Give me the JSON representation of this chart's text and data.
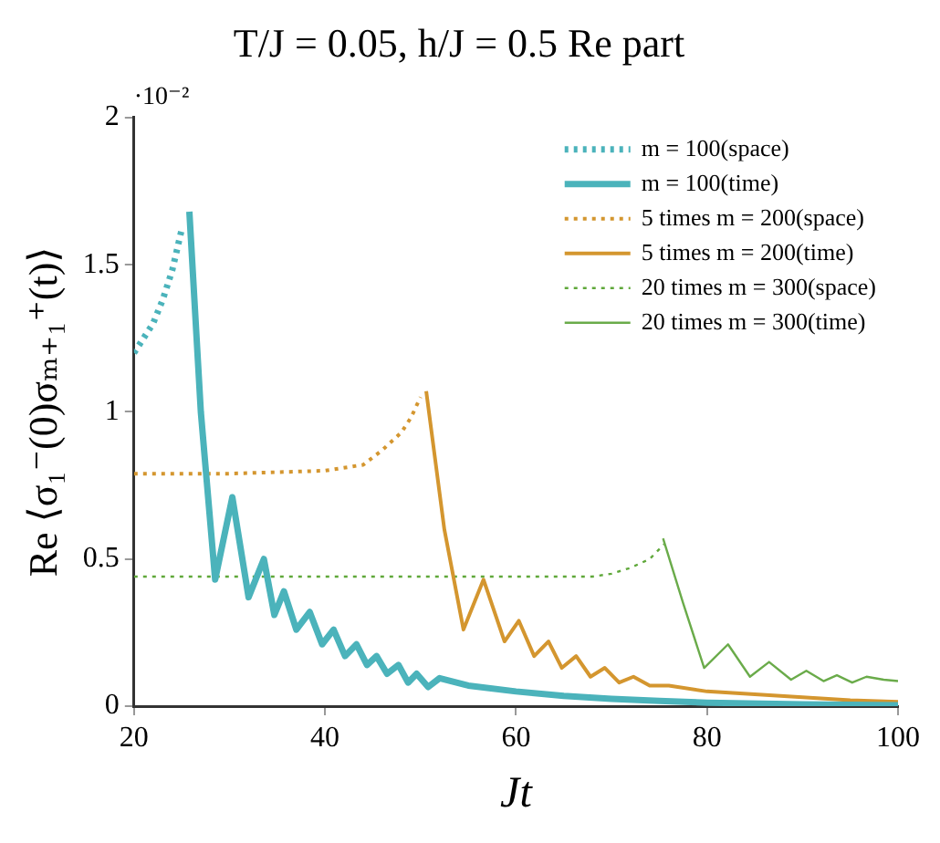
{
  "chart_data": {
    "type": "line",
    "title": "T/J = 0.05, h/J = 0.5 Re part",
    "xlabel": "Jt",
    "ylabel": "Re ⟨σ₁⁻(0)σₘ₊₁⁺(t)⟩",
    "annotations": [
      "·10⁻²"
    ],
    "xlim": [
      20,
      100
    ],
    "xticks": [
      20,
      40,
      60,
      80,
      100
    ],
    "ylim": [
      0,
      2
    ],
    "yticks": [
      0,
      0.5,
      1,
      1.5,
      2
    ],
    "grid": false,
    "legend": "top right",
    "marker": "none",
    "series": [
      {
        "name": "m = 100(space)",
        "color": "#4bb3bb",
        "line_style": "dotted",
        "x": [
          20,
          21,
          22,
          23,
          24,
          25
        ],
        "values": [
          1.2,
          1.25,
          1.3,
          1.38,
          1.48,
          1.62
        ]
      },
      {
        "name": "m = 100(time)",
        "color": "#4bb3bb",
        "line_style": "solid",
        "x": [
          25.8,
          27,
          28.5,
          30.3,
          32,
          33.6,
          34.7,
          35.7,
          37,
          38.4,
          39.7,
          40.9,
          42.1,
          43.3,
          44.4,
          45.4,
          46.5,
          47.7,
          48.7,
          49.6,
          50.8,
          52,
          55,
          60,
          65,
          70,
          75,
          80,
          90,
          100
        ],
        "values": [
          1.68,
          1.0,
          0.43,
          0.71,
          0.37,
          0.5,
          0.31,
          0.39,
          0.26,
          0.32,
          0.21,
          0.26,
          0.17,
          0.21,
          0.14,
          0.17,
          0.11,
          0.14,
          0.08,
          0.11,
          0.065,
          0.095,
          0.07,
          0.05,
          0.035,
          0.025,
          0.018,
          0.012,
          0.006,
          0.003
        ]
      },
      {
        "name": "5 times m = 200(space)",
        "color": "#d4962f",
        "line_style": "dotted",
        "x": [
          20,
          30,
          40,
          44,
          46,
          48,
          49,
          50
        ],
        "values": [
          0.79,
          0.79,
          0.8,
          0.82,
          0.87,
          0.93,
          0.98,
          1.05
        ]
      },
      {
        "name": "5 times m = 200(time)",
        "color": "#d4962f",
        "line_style": "solid",
        "x": [
          50.6,
          52.5,
          54.5,
          56.6,
          58.8,
          60.3,
          61.9,
          63.4,
          64.8,
          66.3,
          67.8,
          69.3,
          70.8,
          72.3,
          74,
          76,
          80,
          85,
          90,
          95,
          100
        ],
        "values": [
          1.07,
          0.6,
          0.26,
          0.43,
          0.22,
          0.29,
          0.17,
          0.22,
          0.13,
          0.17,
          0.1,
          0.13,
          0.08,
          0.1,
          0.07,
          0.07,
          0.05,
          0.04,
          0.03,
          0.02,
          0.015
        ]
      },
      {
        "name": "20 times m = 300(space)",
        "color": "#5fa83a",
        "line_style": "dotted",
        "x": [
          20,
          40,
          60,
          68,
          70,
          72,
          74,
          75.5
        ],
        "values": [
          0.44,
          0.44,
          0.44,
          0.44,
          0.45,
          0.47,
          0.5,
          0.55
        ]
      },
      {
        "name": "20 times m = 300(time)",
        "color": "#6aab4a",
        "line_style": "solid",
        "x": [
          75.4,
          77.5,
          79.7,
          82.2,
          84.5,
          86.5,
          88.8,
          90.4,
          92.2,
          93.6,
          95.2,
          96.7,
          98.5,
          100
        ],
        "values": [
          0.57,
          0.35,
          0.13,
          0.21,
          0.1,
          0.15,
          0.09,
          0.12,
          0.085,
          0.105,
          0.08,
          0.1,
          0.09,
          0.085
        ]
      }
    ]
  }
}
